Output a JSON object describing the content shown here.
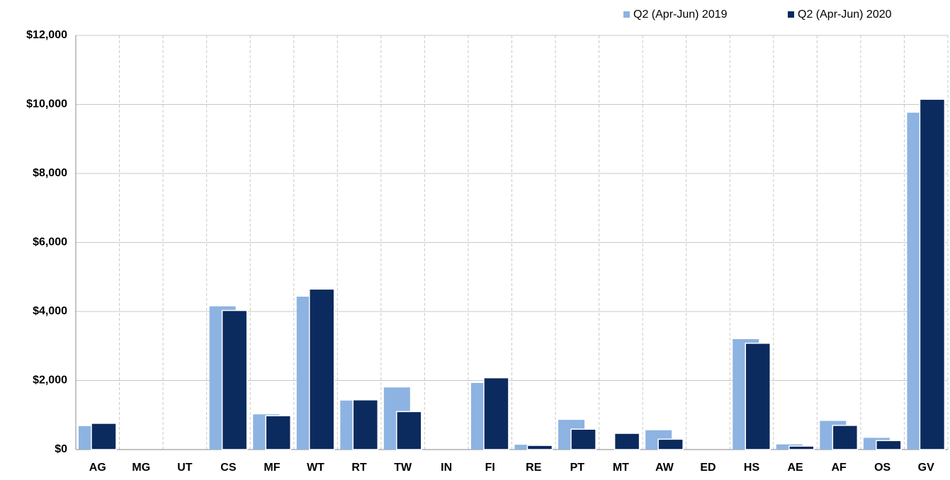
{
  "chart_data": {
    "type": "bar",
    "categories": [
      "AG",
      "MG",
      "UT",
      "CS",
      "MF",
      "WT",
      "RT",
      "TW",
      "IN",
      "FI",
      "RE",
      "PT",
      "MT",
      "AW",
      "ED",
      "HS",
      "AE",
      "AF",
      "OS",
      "GV"
    ],
    "series": [
      {
        "name": "Q2 (Apr-Jun) 2019",
        "color": "#8db3e2",
        "values": [
          680,
          0,
          0,
          4150,
          1020,
          4430,
          1420,
          1800,
          0,
          1930,
          140,
          860,
          0,
          560,
          0,
          3200,
          150,
          830,
          340,
          9760
        ]
      },
      {
        "name": "Q2 (Apr-Jun) 2020",
        "color": "#0b2a5e",
        "values": [
          760,
          0,
          0,
          4030,
          980,
          4650,
          1440,
          1100,
          0,
          2080,
          120,
          590,
          470,
          300,
          0,
          3080,
          100,
          700,
          260,
          10150
        ]
      }
    ],
    "ylim": [
      0,
      12000
    ],
    "yticks": [
      {
        "value": 0,
        "label": "$0"
      },
      {
        "value": 2000,
        "label": "$2,000"
      },
      {
        "value": 4000,
        "label": "$4,000"
      },
      {
        "value": 6000,
        "label": "$6,000"
      },
      {
        "value": 8000,
        "label": "$8,000"
      },
      {
        "value": 10000,
        "label": "$10,000"
      },
      {
        "value": 12000,
        "label": "$12,000"
      }
    ],
    "grid": true,
    "legend": "top-right"
  }
}
